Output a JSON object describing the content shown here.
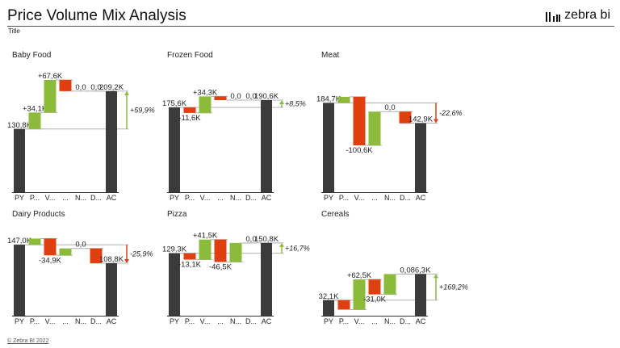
{
  "header": {
    "title": "Price Volume Mix Analysis",
    "subtitle": "Title",
    "brand": "zebra bi"
  },
  "footer": {
    "copyright": "© Zebra BI 2022"
  },
  "colors": {
    "total": "#3b3b3b",
    "positive": "#8cbb3c",
    "negative": "#e0400f",
    "connector": "#b0b0b0"
  },
  "chart_data": [
    {
      "type": "bar",
      "subtype": "waterfall",
      "title": "Baby Food",
      "categories": [
        "PY",
        "P...",
        "V...",
        "...",
        "N...",
        "D...",
        "AC"
      ],
      "values": [
        130.8,
        34.1,
        67.6,
        -23.3,
        0.0,
        0.0,
        209.2
      ],
      "labels": [
        "130,8K",
        "+34,1K",
        "+67,6K",
        "",
        "0,0",
        "0,0",
        "209,2K"
      ],
      "variance_label": "+59,9%"
    },
    {
      "type": "bar",
      "subtype": "waterfall",
      "title": "Frozen Food",
      "categories": [
        "PY",
        "P...",
        "V...",
        "...",
        "N...",
        "D...",
        "AC"
      ],
      "values": [
        175.6,
        -11.6,
        34.3,
        -7.7,
        0.0,
        0.0,
        190.6
      ],
      "labels": [
        "175,6K",
        "-11,6K",
        "+34,3K",
        "",
        "0,0",
        "0,0",
        "190,6K"
      ],
      "variance_label": "+8,5%"
    },
    {
      "type": "bar",
      "subtype": "waterfall",
      "title": "Meat",
      "categories": [
        "PY",
        "P...",
        "V...",
        "...",
        "N...",
        "D...",
        "AC"
      ],
      "values": [
        184.7,
        12.8,
        -100.6,
        70.0,
        0.0,
        -24.0,
        142.9
      ],
      "labels": [
        "184,7K",
        "",
        "-100,6K",
        "",
        "0,0",
        "",
        "142,9K"
      ],
      "variance_label": "-22,6%"
    },
    {
      "type": "bar",
      "subtype": "waterfall",
      "title": "Dairy Products",
      "categories": [
        "PY",
        "P...",
        "V...",
        "...",
        "N...",
        "D...",
        "AC"
      ],
      "values": [
        147.0,
        12.8,
        -34.9,
        14.4,
        0.0,
        -30.5,
        108.8
      ],
      "labels": [
        "147,0K",
        "",
        "-34,9K",
        "",
        "0,0",
        "",
        "108,8K"
      ],
      "variance_label": "-25,9%"
    },
    {
      "type": "bar",
      "subtype": "waterfall",
      "title": "Pizza",
      "categories": [
        "PY",
        "P...",
        "V...",
        "...",
        "N...",
        "D...",
        "AC"
      ],
      "values": [
        129.3,
        -13.1,
        41.5,
        -46.5,
        39.6,
        0.0,
        150.8
      ],
      "labels": [
        "129,3K",
        "-13,1K",
        "+41,5K",
        "-46,5K",
        "",
        "0,0",
        "150,8K"
      ],
      "variance_label": "+16,7%"
    },
    {
      "type": "bar",
      "subtype": "waterfall",
      "title": "Cereals",
      "categories": [
        "PY",
        "P...",
        "V...",
        "...",
        "N...",
        "D...",
        "AC"
      ],
      "values": [
        32.1,
        -19.5,
        62.5,
        -31.0,
        42.2,
        0.0,
        86.3
      ],
      "labels": [
        "32,1K",
        "",
        "+62,5K",
        "-31,0K",
        "",
        "0,0",
        "86,3K"
      ],
      "variance_label": "+169,2%"
    }
  ]
}
